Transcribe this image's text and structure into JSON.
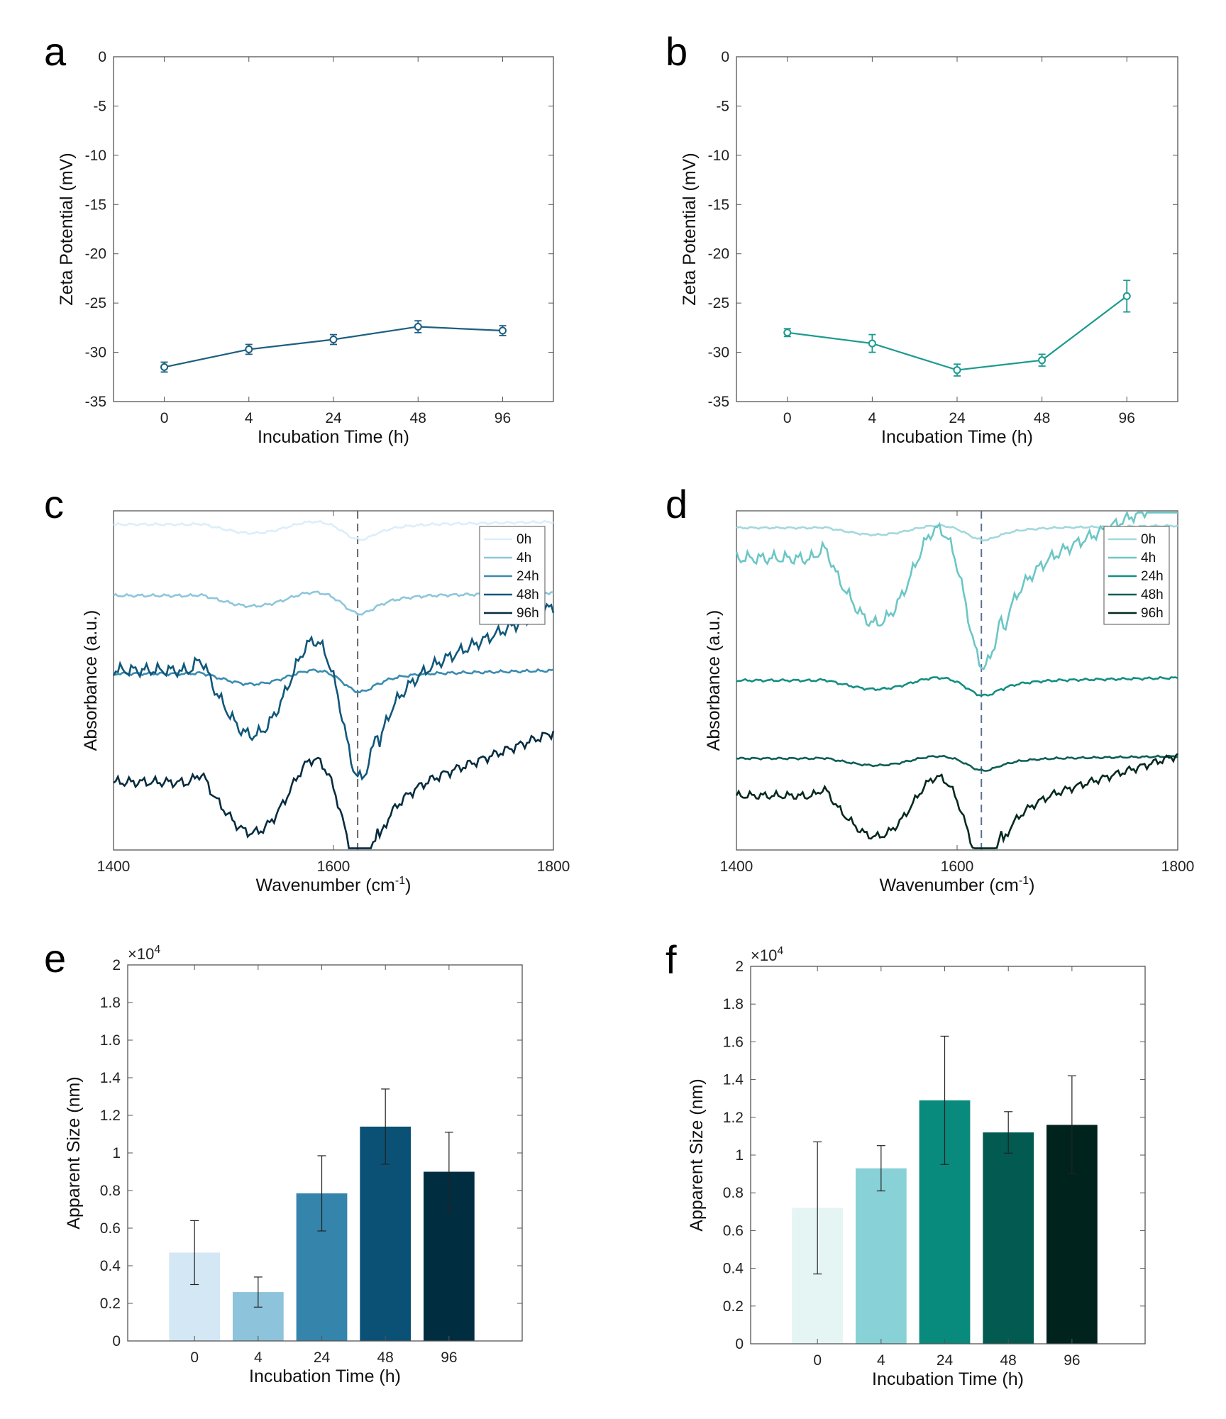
{
  "panels": [
    "a",
    "b",
    "c",
    "d",
    "e",
    "f"
  ],
  "chart_data": [
    {
      "id": "a",
      "type": "line",
      "categories": [
        "0",
        "4",
        "24",
        "48",
        "96"
      ],
      "values": [
        -31.5,
        -29.7,
        -28.7,
        -27.4,
        -27.8
      ],
      "errors": [
        0.5,
        0.5,
        0.5,
        0.6,
        0.5
      ],
      "xlabel": "Incubation Time (h)",
      "ylabel": "Zeta Potential (mV)",
      "ylim": [
        -35,
        0
      ],
      "yticks": [
        "0",
        "-5",
        "-10",
        "-15",
        "-20",
        "-25",
        "-30",
        "-35"
      ],
      "color": "#1d5f80"
    },
    {
      "id": "b",
      "type": "line",
      "categories": [
        "0",
        "4",
        "24",
        "48",
        "96"
      ],
      "values": [
        -28.0,
        -29.1,
        -31.8,
        -30.8,
        -24.3
      ],
      "errors": [
        0.4,
        0.9,
        0.6,
        0.6,
        1.6
      ],
      "xlabel": "Incubation Time (h)",
      "ylabel": "Zeta Potential (mV)",
      "ylim": [
        -35,
        0
      ],
      "yticks": [
        "0",
        "-5",
        "-10",
        "-15",
        "-20",
        "-25",
        "-30",
        "-35"
      ],
      "color": "#1b9a8f"
    },
    {
      "id": "c",
      "type": "line",
      "xlabel": "Wavenumber (cm",
      "xlabel_sup": "-1",
      "xlabel_end": ")",
      "ylabel": "Absorbance (a.u.)",
      "xlim": [
        1400,
        1800
      ],
      "xticks": [
        "1400",
        "1600",
        "1800"
      ],
      "dashed_x": 1622,
      "legend": "top-right",
      "series": [
        {
          "name": "0h",
          "color": "#dceefa",
          "baseline": 0.96,
          "amp": 0.05,
          "shape": "flat"
        },
        {
          "name": "4h",
          "color": "#8ec6dc",
          "baseline": 0.75,
          "amp": 0.06,
          "shape": "flat"
        },
        {
          "name": "24h",
          "color": "#3a8bb0",
          "baseline": 0.52,
          "amp": 0.06,
          "shape": "flat"
        },
        {
          "name": "48h",
          "color": "#10577a",
          "baseline": 0.53,
          "amp": 0.27,
          "shape": "deep"
        },
        {
          "name": "96h",
          "color": "#062c40",
          "baseline": 0.2,
          "amp": 0.21,
          "shape": "deep"
        }
      ]
    },
    {
      "id": "d",
      "type": "line",
      "xlabel": "Wavenumber (cm",
      "xlabel_sup": "-1",
      "xlabel_end": ")",
      "ylabel": "Absorbance (a.u.)",
      "xlim": [
        1400,
        1800
      ],
      "xticks": [
        "1400",
        "1600",
        "1800"
      ],
      "dashed_x": 1622,
      "legend": "top-right",
      "series": [
        {
          "name": "0h",
          "color": "#a3d8dc",
          "baseline": 0.95,
          "amp": 0.04,
          "shape": "flat"
        },
        {
          "name": "4h",
          "color": "#6cc6c6",
          "baseline": 0.86,
          "amp": 0.27,
          "shape": "deep"
        },
        {
          "name": "24h",
          "color": "#138f83",
          "baseline": 0.5,
          "amp": 0.05,
          "shape": "flat"
        },
        {
          "name": "48h",
          "color": "#0d5e55",
          "baseline": 0.27,
          "amp": 0.04,
          "shape": "flat"
        },
        {
          "name": "96h",
          "color": "#04281f",
          "baseline": 0.16,
          "amp": 0.17,
          "shape": "deep"
        }
      ]
    },
    {
      "id": "e",
      "type": "bar",
      "categories": [
        "0",
        "4",
        "24",
        "48",
        "96"
      ],
      "values": [
        0.47,
        0.26,
        0.785,
        1.14,
        0.9
      ],
      "errors": [
        0.17,
        0.08,
        0.2,
        0.2,
        0.21
      ],
      "colors": [
        "#d3e7f5",
        "#8dc3db",
        "#3584ab",
        "#0a5175",
        "#012d41"
      ],
      "xlabel": "Incubation Time (h)",
      "ylabel": "Apparent Size (nm)",
      "ylim": [
        0,
        2
      ],
      "yticks": [
        "0",
        "0.2",
        "0.4",
        "0.6",
        "0.8",
        "1",
        "1.2",
        "1.4",
        "1.6",
        "1.8",
        "2"
      ],
      "multiplier": "×10",
      "multiplier_exp": "4"
    },
    {
      "id": "f",
      "type": "bar",
      "categories": [
        "0",
        "4",
        "24",
        "48",
        "96"
      ],
      "values": [
        0.72,
        0.93,
        1.29,
        1.12,
        1.16
      ],
      "errors": [
        0.35,
        0.12,
        0.34,
        0.11,
        0.26
      ],
      "colors": [
        "#e5f5f3",
        "#88d1d7",
        "#088a7d",
        "#025a51",
        "#01231e"
      ],
      "xlabel": "Incubation Time (h)",
      "ylabel": "Apparent Size (nm)",
      "ylim": [
        0,
        2
      ],
      "yticks": [
        "0",
        "0.2",
        "0.4",
        "0.6",
        "0.8",
        "1",
        "1.2",
        "1.4",
        "1.6",
        "1.8",
        "2"
      ],
      "multiplier": "×10",
      "multiplier_exp": "4"
    }
  ]
}
